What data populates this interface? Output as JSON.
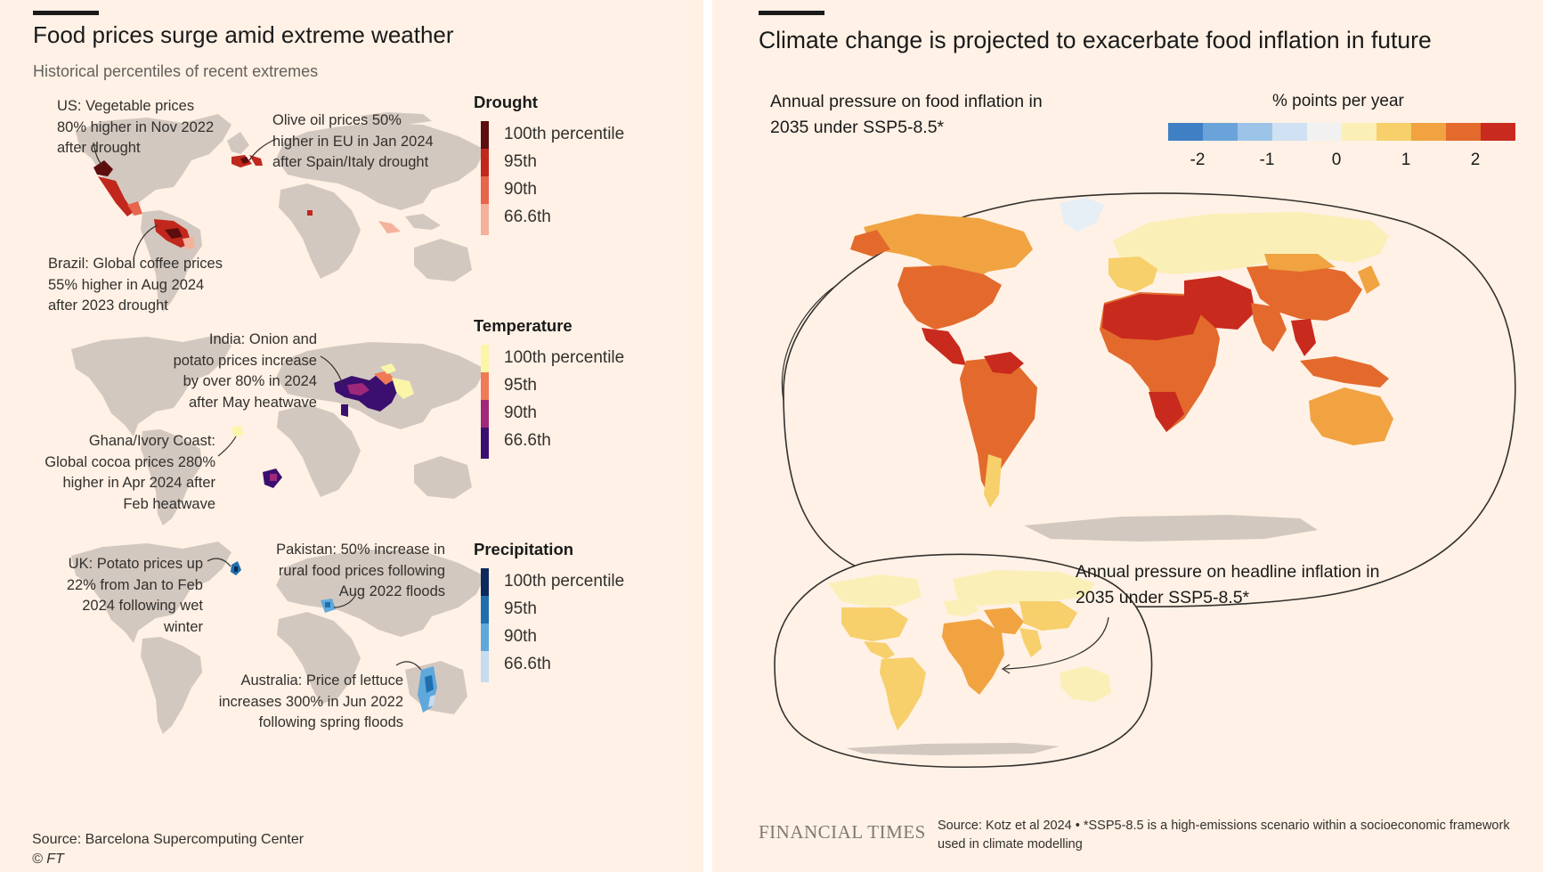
{
  "left": {
    "title": "Food prices surge amid extreme weather",
    "subtitle": "Historical percentiles of recent extremes",
    "drought_annotations": {
      "us": [
        "US: Vegetable prices",
        "80% higher in Nov 2022",
        "after drought"
      ],
      "olive": [
        "Olive oil prices 50%",
        "higher in EU in Jan 2024",
        "after Spain/Italy drought"
      ],
      "brazil": [
        "Brazil: Global coffee prices",
        "55% higher in Aug 2024",
        "after 2023 drought"
      ]
    },
    "temperature_annotations": {
      "india": [
        "India: Onion and",
        "potato prices increase",
        "by over 80% in 2024",
        "after May heatwave"
      ],
      "ghana": [
        "Ghana/Ivory Coast:",
        "Global cocoa prices 280%",
        "higher in Apr 2024 after",
        "Feb heatwave"
      ]
    },
    "precipitation_annotations": {
      "uk": [
        "UK: Potato prices up",
        "22% from Jan to Feb",
        "2024 following wet",
        "winter"
      ],
      "pakistan": [
        "Pakistan: 50% increase in",
        "rural food prices following",
        "Aug 2022 floods"
      ],
      "australia": [
        "Australia: Price of lettuce",
        "increases 300% in Jun 2022",
        "following spring floods"
      ]
    },
    "legends": {
      "drought": {
        "title": "Drought",
        "items": [
          {
            "label": "100th percentile",
            "color": "#5c0d0d"
          },
          {
            "label": "95th",
            "color": "#c1271d"
          },
          {
            "label": "90th",
            "color": "#e8644a"
          },
          {
            "label": "66.6th",
            "color": "#f4b19c"
          }
        ]
      },
      "temperature": {
        "title": "Temperature",
        "items": [
          {
            "label": "100th percentile",
            "color": "#fbf5a8"
          },
          {
            "label": "95th",
            "color": "#ef7a56"
          },
          {
            "label": "90th",
            "color": "#a0287a"
          },
          {
            "label": "66.6th",
            "color": "#3b0f6f"
          }
        ]
      },
      "precipitation": {
        "title": "Precipitation",
        "items": [
          {
            "label": "100th percentile",
            "color": "#0d2a5c"
          },
          {
            "label": "95th",
            "color": "#1f6fae"
          },
          {
            "label": "90th",
            "color": "#5fa8dc"
          },
          {
            "label": "66.6th",
            "color": "#c6dcf0"
          }
        ]
      }
    },
    "source": "Source: Barcelona Supercomputing Center",
    "copyright": "© FT"
  },
  "right": {
    "title": "Climate change is projected to exacerbate food inflation in future",
    "food_annotation": [
      "Annual pressure on food inflation in",
      "2035 under SSP5-8.5*"
    ],
    "headline_annotation": [
      "Annual pressure on headline inflation in",
      "2035 under SSP5-8.5*"
    ],
    "scale": {
      "title": "% points per year",
      "ticks": [
        "-2",
        "-1",
        "0",
        "1",
        "2"
      ],
      "colors": [
        "#3f7fc4",
        "#6aa3da",
        "#9cc4e8",
        "#cfe1f2",
        "#f1f1f1",
        "#fbefb8",
        "#f7cf6b",
        "#f0a340",
        "#e36a2c",
        "#c92a1e"
      ]
    },
    "logo": "FINANCIAL TIMES",
    "source": [
      "Source: Kotz et al 2024 • *SSP5-8.5 is a high-emissions scenario within a socioeconomic framework",
      "used in climate modelling"
    ]
  },
  "map_colors": {
    "land": "#d3c8bf",
    "hot1": "#c92a1e",
    "hot2": "#e36a2c",
    "warm": "#f0a340",
    "pale": "#f7cf6b",
    "cream": "#fbefb8",
    "ice": "#e6eef6"
  }
}
